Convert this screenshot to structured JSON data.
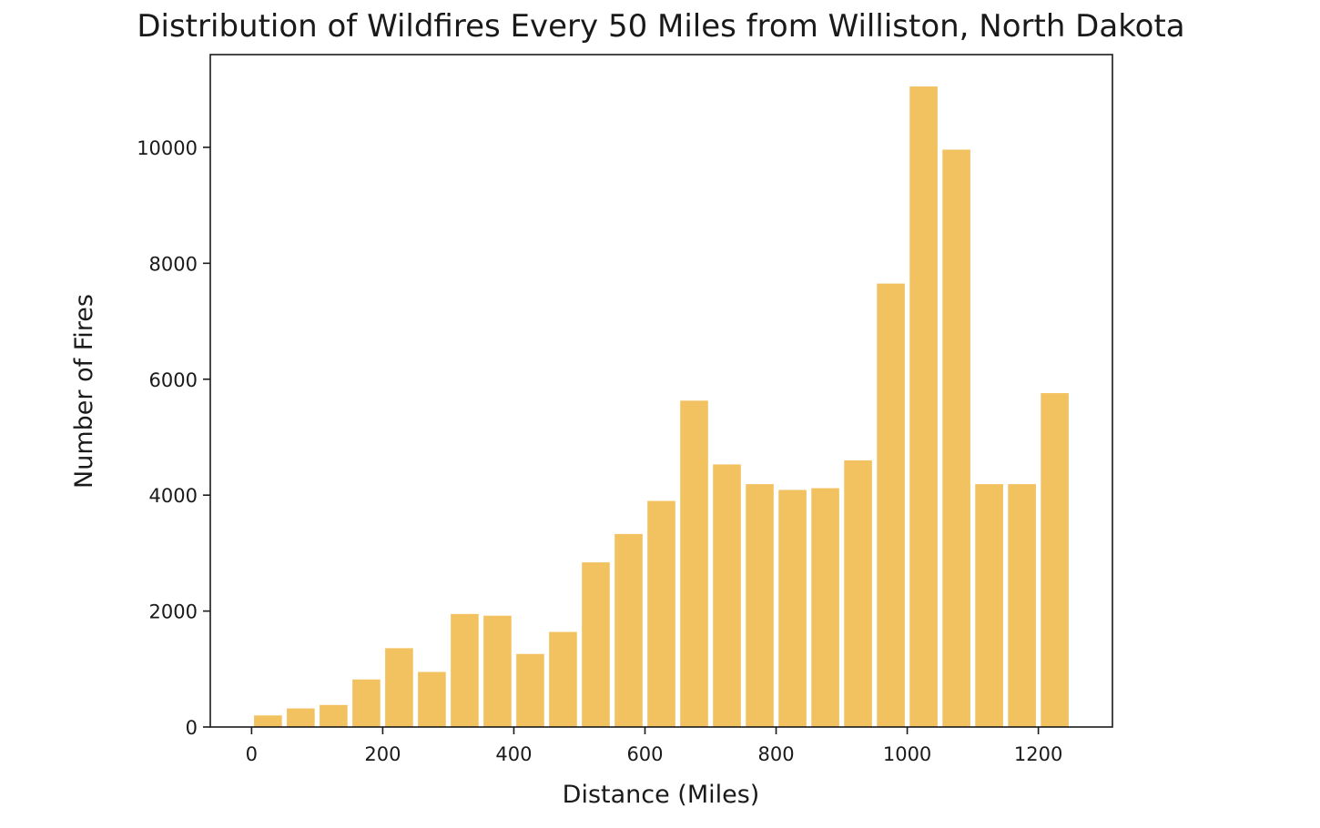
{
  "chart_data": {
    "type": "bar",
    "title": "Distribution of Wildfires Every 50 Miles from Williston, North Dakota",
    "xlabel": "Distance (Miles)",
    "ylabel": "Number of Fires",
    "bin_width": 50,
    "xlim": [
      -63,
      1313
    ],
    "ylim": [
      0,
      11600
    ],
    "x_ticks": [
      0,
      200,
      400,
      600,
      800,
      1000,
      1200
    ],
    "y_ticks": [
      0,
      2000,
      4000,
      6000,
      8000,
      10000
    ],
    "bins": [
      {
        "start": 0,
        "end": 50,
        "value": 200
      },
      {
        "start": 50,
        "end": 100,
        "value": 320
      },
      {
        "start": 100,
        "end": 150,
        "value": 380
      },
      {
        "start": 150,
        "end": 200,
        "value": 820
      },
      {
        "start": 200,
        "end": 250,
        "value": 1360
      },
      {
        "start": 250,
        "end": 300,
        "value": 950
      },
      {
        "start": 300,
        "end": 350,
        "value": 1950
      },
      {
        "start": 350,
        "end": 400,
        "value": 1920
      },
      {
        "start": 400,
        "end": 450,
        "value": 1260
      },
      {
        "start": 450,
        "end": 500,
        "value": 1640
      },
      {
        "start": 500,
        "end": 550,
        "value": 2840
      },
      {
        "start": 550,
        "end": 600,
        "value": 3330
      },
      {
        "start": 600,
        "end": 650,
        "value": 3900
      },
      {
        "start": 650,
        "end": 700,
        "value": 5630
      },
      {
        "start": 700,
        "end": 750,
        "value": 4530
      },
      {
        "start": 750,
        "end": 800,
        "value": 4190
      },
      {
        "start": 800,
        "end": 850,
        "value": 4090
      },
      {
        "start": 850,
        "end": 900,
        "value": 4120
      },
      {
        "start": 900,
        "end": 950,
        "value": 4600
      },
      {
        "start": 950,
        "end": 1000,
        "value": 7650
      },
      {
        "start": 1000,
        "end": 1050,
        "value": 11050
      },
      {
        "start": 1050,
        "end": 1100,
        "value": 9960
      },
      {
        "start": 1100,
        "end": 1150,
        "value": 4190
      },
      {
        "start": 1150,
        "end": 1200,
        "value": 4190
      },
      {
        "start": 1200,
        "end": 1250,
        "value": 5760
      }
    ],
    "bar_color": "#f2c261",
    "grid": false,
    "legend": "none"
  }
}
